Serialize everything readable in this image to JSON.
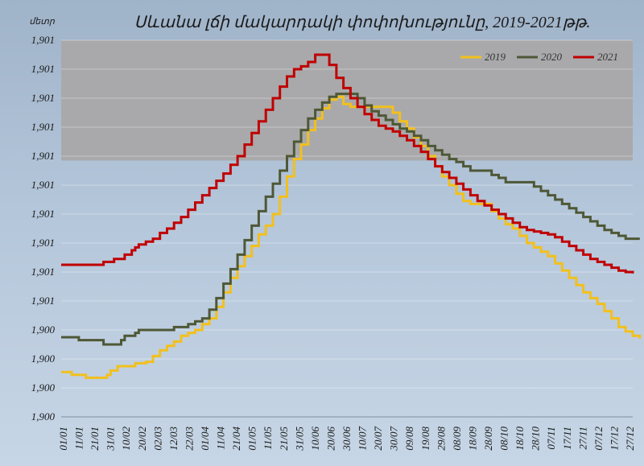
{
  "chart_data": {
    "type": "line",
    "title": "Սևանա լճի մակարդակի փոփոխությունը, 2019-2021թթ.",
    "ylabel": "մետր",
    "ytick_labels": [
      "1,900",
      "1,900",
      "1,900",
      "1,900",
      "1,901",
      "1,901",
      "1,901",
      "1,901",
      "1,901",
      "1,901",
      "1,901",
      "1,901",
      "1,901",
      "1,901"
    ],
    "categories": [
      "01/01",
      "11/01",
      "21/01",
      "31/01",
      "10/02",
      "20/02",
      "02/03",
      "12/03",
      "22/03",
      "01/04",
      "11/04",
      "21/04",
      "01/05",
      "11/05",
      "21/05",
      "31/05",
      "10/06",
      "20/06",
      "30/06",
      "10/07",
      "20/07",
      "30/07",
      "09/08",
      "19/08",
      "29/08",
      "08/09",
      "18/09",
      "28/09",
      "08/10",
      "18/10",
      "28/10",
      "07/11",
      "17/11",
      "27/11",
      "07/12",
      "17/12",
      "27/12"
    ],
    "ylim": [
      0,
      13
    ],
    "legend_position": "top-right",
    "plot_background": "#a9a9ab",
    "series": [
      {
        "name": "2019",
        "color": "#f2c01d",
        "points": [
          [
            0,
            1.55
          ],
          [
            3,
            1.45
          ],
          [
            5,
            1.45
          ],
          [
            6,
            1.45
          ],
          [
            7,
            1.35
          ],
          [
            10,
            1.35
          ],
          [
            12,
            1.35
          ],
          [
            13,
            1.45
          ],
          [
            14,
            1.6
          ],
          [
            16,
            1.75
          ],
          [
            20,
            1.75
          ],
          [
            21,
            1.85
          ],
          [
            22,
            1.85
          ],
          [
            24,
            1.9
          ],
          [
            26,
            2.1
          ],
          [
            28,
            2.3
          ],
          [
            30,
            2.45
          ],
          [
            32,
            2.6
          ],
          [
            34,
            2.8
          ],
          [
            36,
            2.9
          ],
          [
            38,
            3.0
          ],
          [
            40,
            3.2
          ],
          [
            42,
            3.4
          ],
          [
            44,
            3.8
          ],
          [
            46,
            4.3
          ],
          [
            48,
            4.8
          ],
          [
            50,
            5.2
          ],
          [
            52,
            5.55
          ],
          [
            54,
            5.9
          ],
          [
            56,
            6.3
          ],
          [
            58,
            6.6
          ],
          [
            60,
            7.0
          ],
          [
            62,
            7.6
          ],
          [
            64,
            8.3
          ],
          [
            66,
            8.9
          ],
          [
            68,
            9.4
          ],
          [
            70,
            9.9
          ],
          [
            72,
            10.3
          ],
          [
            74,
            10.65
          ],
          [
            76,
            10.95
          ],
          [
            78,
            11.05
          ],
          [
            80,
            10.8
          ],
          [
            82,
            10.7
          ],
          [
            84,
            10.7
          ],
          [
            86,
            10.7
          ],
          [
            88,
            10.7
          ],
          [
            90,
            10.7
          ],
          [
            92,
            10.7
          ],
          [
            94,
            10.5
          ],
          [
            96,
            10.2
          ],
          [
            98,
            9.95
          ],
          [
            100,
            9.65
          ],
          [
            102,
            9.35
          ],
          [
            104,
            9.0
          ],
          [
            106,
            8.65
          ],
          [
            108,
            8.3
          ],
          [
            110,
            8.0
          ],
          [
            112,
            7.7
          ],
          [
            114,
            7.45
          ],
          [
            116,
            7.35
          ],
          [
            118,
            7.35
          ],
          [
            120,
            7.35
          ],
          [
            122,
            7.1
          ],
          [
            124,
            6.85
          ],
          [
            126,
            6.65
          ],
          [
            128,
            6.5
          ],
          [
            130,
            6.25
          ],
          [
            132,
            6.0
          ],
          [
            134,
            5.85
          ],
          [
            136,
            5.7
          ],
          [
            138,
            5.55
          ],
          [
            140,
            5.3
          ],
          [
            142,
            5.05
          ],
          [
            144,
            4.8
          ],
          [
            146,
            4.55
          ],
          [
            148,
            4.3
          ],
          [
            150,
            4.1
          ],
          [
            152,
            3.9
          ],
          [
            154,
            3.65
          ],
          [
            156,
            3.4
          ],
          [
            158,
            3.1
          ],
          [
            160,
            2.95
          ],
          [
            162,
            2.8
          ],
          [
            164,
            2.7
          ]
        ]
      },
      {
        "name": "2020",
        "color": "#4e5836",
        "points": [
          [
            0,
            2.75
          ],
          [
            3,
            2.75
          ],
          [
            5,
            2.65
          ],
          [
            6,
            2.65
          ],
          [
            8,
            2.65
          ],
          [
            10,
            2.65
          ],
          [
            11,
            2.65
          ],
          [
            12,
            2.5
          ],
          [
            14,
            2.5
          ],
          [
            16,
            2.5
          ],
          [
            17,
            2.65
          ],
          [
            18,
            2.8
          ],
          [
            20,
            2.8
          ],
          [
            21,
            2.9
          ],
          [
            22,
            3.0
          ],
          [
            24,
            3.0
          ],
          [
            26,
            3.0
          ],
          [
            28,
            3.0
          ],
          [
            30,
            3.0
          ],
          [
            32,
            3.1
          ],
          [
            34,
            3.1
          ],
          [
            36,
            3.2
          ],
          [
            38,
            3.3
          ],
          [
            40,
            3.4
          ],
          [
            42,
            3.7
          ],
          [
            44,
            4.1
          ],
          [
            46,
            4.6
          ],
          [
            48,
            5.1
          ],
          [
            50,
            5.6
          ],
          [
            52,
            6.1
          ],
          [
            54,
            6.6
          ],
          [
            56,
            7.1
          ],
          [
            58,
            7.6
          ],
          [
            60,
            8.05
          ],
          [
            62,
            8.5
          ],
          [
            64,
            9.0
          ],
          [
            66,
            9.5
          ],
          [
            68,
            9.9
          ],
          [
            70,
            10.3
          ],
          [
            72,
            10.6
          ],
          [
            74,
            10.85
          ],
          [
            76,
            11.05
          ],
          [
            78,
            11.15
          ],
          [
            80,
            11.15
          ],
          [
            82,
            11.15
          ],
          [
            84,
            11.0
          ],
          [
            86,
            10.75
          ],
          [
            88,
            10.55
          ],
          [
            90,
            10.4
          ],
          [
            92,
            10.25
          ],
          [
            94,
            10.1
          ],
          [
            96,
            9.95
          ],
          [
            98,
            9.85
          ],
          [
            100,
            9.7
          ],
          [
            102,
            9.55
          ],
          [
            104,
            9.35
          ],
          [
            106,
            9.2
          ],
          [
            108,
            9.05
          ],
          [
            110,
            8.9
          ],
          [
            112,
            8.8
          ],
          [
            114,
            8.65
          ],
          [
            116,
            8.5
          ],
          [
            118,
            8.5
          ],
          [
            120,
            8.5
          ],
          [
            122,
            8.35
          ],
          [
            124,
            8.25
          ],
          [
            126,
            8.1
          ],
          [
            128,
            8.1
          ],
          [
            130,
            8.1
          ],
          [
            132,
            8.1
          ],
          [
            134,
            7.95
          ],
          [
            136,
            7.8
          ],
          [
            138,
            7.65
          ],
          [
            140,
            7.5
          ],
          [
            142,
            7.35
          ],
          [
            144,
            7.2
          ],
          [
            146,
            7.05
          ],
          [
            148,
            6.9
          ],
          [
            150,
            6.75
          ],
          [
            152,
            6.6
          ],
          [
            154,
            6.45
          ],
          [
            156,
            6.35
          ],
          [
            158,
            6.25
          ],
          [
            160,
            6.15
          ],
          [
            162,
            6.15
          ],
          [
            164,
            6.15
          ]
        ]
      },
      {
        "name": "2021",
        "color": "#c00000",
        "points": [
          [
            0,
            5.25
          ],
          [
            3,
            5.25
          ],
          [
            5,
            5.25
          ],
          [
            7,
            5.25
          ],
          [
            9,
            5.25
          ],
          [
            11,
            5.25
          ],
          [
            12,
            5.35
          ],
          [
            14,
            5.35
          ],
          [
            15,
            5.45
          ],
          [
            17,
            5.45
          ],
          [
            18,
            5.6
          ],
          [
            20,
            5.75
          ],
          [
            21,
            5.85
          ],
          [
            22,
            5.95
          ],
          [
            24,
            6.05
          ],
          [
            26,
            6.15
          ],
          [
            28,
            6.35
          ],
          [
            30,
            6.5
          ],
          [
            32,
            6.7
          ],
          [
            34,
            6.9
          ],
          [
            36,
            7.15
          ],
          [
            38,
            7.4
          ],
          [
            40,
            7.65
          ],
          [
            42,
            7.9
          ],
          [
            44,
            8.15
          ],
          [
            46,
            8.4
          ],
          [
            48,
            8.7
          ],
          [
            50,
            9.0
          ],
          [
            52,
            9.4
          ],
          [
            54,
            9.8
          ],
          [
            56,
            10.2
          ],
          [
            58,
            10.6
          ],
          [
            60,
            11.0
          ],
          [
            62,
            11.4
          ],
          [
            64,
            11.75
          ],
          [
            66,
            12.0
          ],
          [
            68,
            12.1
          ],
          [
            70,
            12.25
          ],
          [
            72,
            12.5
          ],
          [
            74,
            12.5
          ],
          [
            76,
            12.15
          ],
          [
            78,
            11.7
          ],
          [
            80,
            11.35
          ],
          [
            82,
            11.0
          ],
          [
            84,
            10.7
          ],
          [
            86,
            10.45
          ],
          [
            88,
            10.25
          ],
          [
            90,
            10.05
          ],
          [
            92,
            9.95
          ],
          [
            94,
            9.85
          ],
          [
            96,
            9.7
          ],
          [
            98,
            9.55
          ],
          [
            100,
            9.35
          ],
          [
            102,
            9.15
          ],
          [
            104,
            8.9
          ],
          [
            106,
            8.65
          ],
          [
            108,
            8.45
          ],
          [
            110,
            8.25
          ],
          [
            112,
            8.05
          ],
          [
            114,
            7.85
          ],
          [
            116,
            7.65
          ],
          [
            118,
            7.45
          ],
          [
            120,
            7.3
          ],
          [
            122,
            7.15
          ],
          [
            124,
            7.0
          ],
          [
            126,
            6.85
          ],
          [
            128,
            6.7
          ],
          [
            130,
            6.55
          ],
          [
            132,
            6.45
          ],
          [
            134,
            6.4
          ],
          [
            136,
            6.35
          ],
          [
            138,
            6.3
          ],
          [
            140,
            6.2
          ],
          [
            142,
            6.05
          ],
          [
            144,
            5.9
          ],
          [
            146,
            5.75
          ],
          [
            148,
            5.6
          ],
          [
            150,
            5.45
          ],
          [
            152,
            5.35
          ],
          [
            154,
            5.25
          ],
          [
            156,
            5.15
          ],
          [
            158,
            5.05
          ],
          [
            160,
            5.0
          ],
          [
            162,
            4.95
          ]
        ]
      }
    ]
  }
}
